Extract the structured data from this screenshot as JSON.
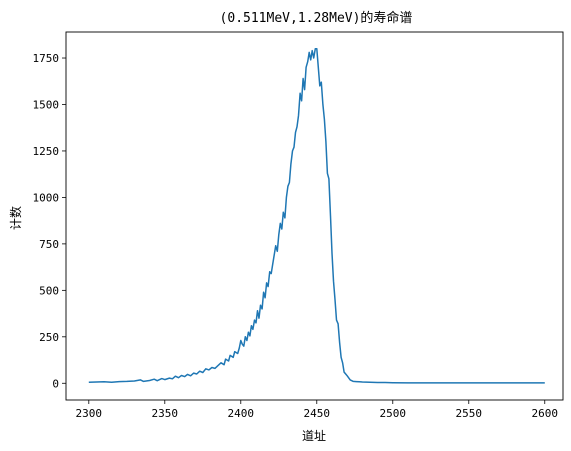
{
  "chart_data": {
    "type": "line",
    "title": "(0.511MeV,1.28MeV)的寿命谱",
    "xlabel": "道址",
    "ylabel": "计数",
    "xlim": [
      2285,
      2612
    ],
    "ylim": [
      -90,
      1890
    ],
    "xticks": [
      2300,
      2350,
      2400,
      2450,
      2500,
      2550,
      2600
    ],
    "yticks": [
      0,
      250,
      500,
      750,
      1000,
      1250,
      1500,
      1750
    ],
    "grid": false,
    "legend": "none",
    "series": [
      {
        "color": "#1f77b4",
        "x": [
          2300,
          2305,
          2310,
          2315,
          2320,
          2325,
          2330,
          2334,
          2336,
          2340,
          2343,
          2345,
          2348,
          2350,
          2353,
          2355,
          2357,
          2359,
          2361,
          2363,
          2365,
          2367,
          2369,
          2371,
          2373,
          2375,
          2377,
          2379,
          2381,
          2383,
          2385,
          2387,
          2389,
          2390,
          2392,
          2393,
          2395,
          2396,
          2398,
          2399,
          2400,
          2401,
          2402,
          2403,
          2404,
          2405,
          2406,
          2407,
          2408,
          2409,
          2410,
          2411,
          2412,
          2413,
          2414,
          2415,
          2416,
          2417,
          2418,
          2419,
          2420,
          2421,
          2422,
          2423,
          2424,
          2425,
          2426,
          2427,
          2428,
          2429,
          2430,
          2431,
          2432,
          2433,
          2434,
          2435,
          2436,
          2437,
          2438,
          2439,
          2440,
          2441,
          2442,
          2443,
          2444,
          2445,
          2446,
          2447,
          2448,
          2449,
          2450,
          2451,
          2452,
          2453,
          2454,
          2455,
          2456,
          2457,
          2458,
          2459,
          2460,
          2461,
          2462,
          2463,
          2464,
          2465,
          2466,
          2467,
          2468,
          2469,
          2470,
          2472,
          2474,
          2476,
          2478,
          2480,
          2485,
          2490,
          2495,
          2500,
          2510,
          2520,
          2530,
          2540,
          2550,
          2560,
          2570,
          2580,
          2590,
          2600
        ],
        "y": [
          5,
          7,
          8,
          6,
          9,
          10,
          12,
          18,
          10,
          15,
          22,
          14,
          25,
          20,
          28,
          24,
          38,
          30,
          42,
          36,
          48,
          40,
          55,
          50,
          65,
          58,
          78,
          72,
          85,
          80,
          95,
          110,
          100,
          130,
          120,
          150,
          140,
          170,
          160,
          190,
          230,
          210,
          200,
          250,
          230,
          275,
          255,
          310,
          290,
          340,
          325,
          390,
          350,
          420,
          400,
          490,
          460,
          540,
          520,
          600,
          590,
          640,
          690,
          740,
          710,
          800,
          860,
          830,
          920,
          890,
          1000,
          1060,
          1080,
          1180,
          1250,
          1270,
          1350,
          1380,
          1440,
          1560,
          1520,
          1640,
          1580,
          1700,
          1730,
          1780,
          1740,
          1790,
          1750,
          1800,
          1800,
          1700,
          1600,
          1620,
          1500,
          1420,
          1300,
          1130,
          1100,
          900,
          700,
          550,
          450,
          340,
          320,
          220,
          140,
          110,
          60,
          50,
          40,
          18,
          10,
          9,
          8,
          7,
          5,
          4,
          4,
          3,
          2,
          2,
          2,
          2,
          2,
          2,
          2,
          2,
          2,
          2
        ]
      }
    ]
  }
}
